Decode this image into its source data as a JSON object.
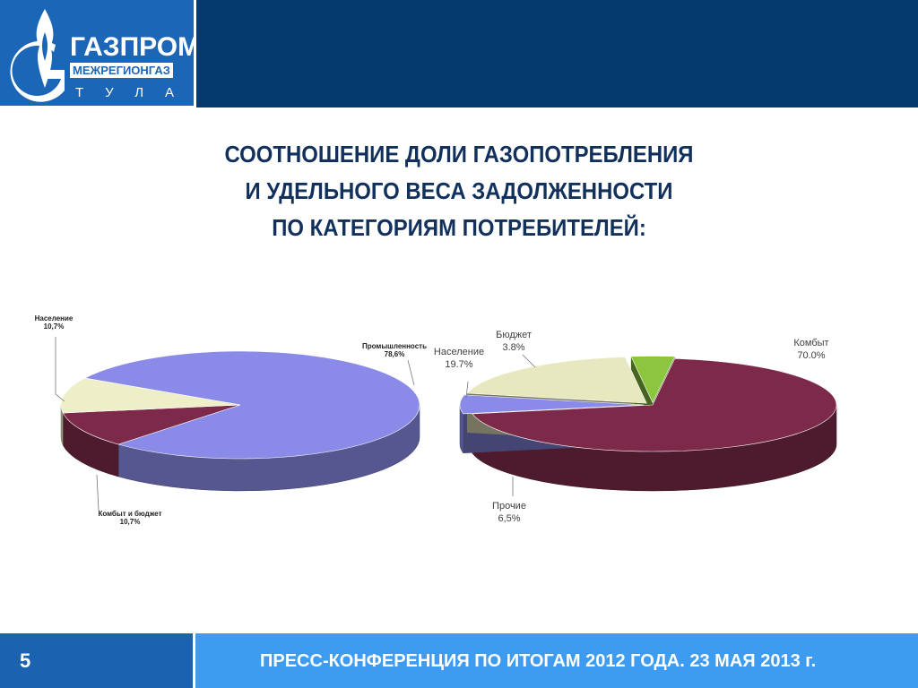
{
  "header": {
    "logo_main": "ГАЗПРОМ",
    "logo_sub": "МЕЖРЕГИОНГАЗ",
    "logo_city": "ТУЛА",
    "colors": {
      "logo_bg": "#1c66b7",
      "band": "#053a6e"
    }
  },
  "title": {
    "line1": "СООТНОШЕНИЕ ДОЛИ ГАЗОПОТРЕБЛЕНИЯ",
    "line2": "И УДЕЛЬНОГО ВЕСА ЗАДОЛЖЕННОСТИ",
    "line3": "ПО КАТЕГОРИЯМ ПОТРЕБИТЕЛЕЙ:"
  },
  "chart_data": [
    {
      "type": "pie",
      "title": "",
      "slices": [
        {
          "label": "Промышленность",
          "value_label": "78,6%",
          "value": 78.6,
          "color": "#8a8ae8"
        },
        {
          "label": "Комбыт и бюджет",
          "value_label": "10,7%",
          "value": 10.7,
          "color": "#7d2a4a"
        },
        {
          "label": "Население",
          "value_label": "10,7%",
          "value": 10.7,
          "color": "#eeeec8"
        }
      ]
    },
    {
      "type": "pie",
      "title": "",
      "slices": [
        {
          "label": "Комбыт",
          "value_label": "70.0%",
          "value": 70.0,
          "color": "#7d2a4a"
        },
        {
          "label": "Прочие",
          "value_label": "6,5%",
          "value": 6.5,
          "color": "#8a8ae8"
        },
        {
          "label": "Население",
          "value_label": "19.7%",
          "value": 19.7,
          "color": "#e8e8c0"
        },
        {
          "label": "Бюджет",
          "value_label": "3.8%",
          "value": 3.8,
          "color": "#8cc63f"
        }
      ]
    }
  ],
  "footer": {
    "page_number": "5",
    "text": "ПРЕСС-КОНФЕРЕНЦИЯ ПО ИТОГАМ 2012 ГОДА. 23 МАЯ 2013 г."
  }
}
